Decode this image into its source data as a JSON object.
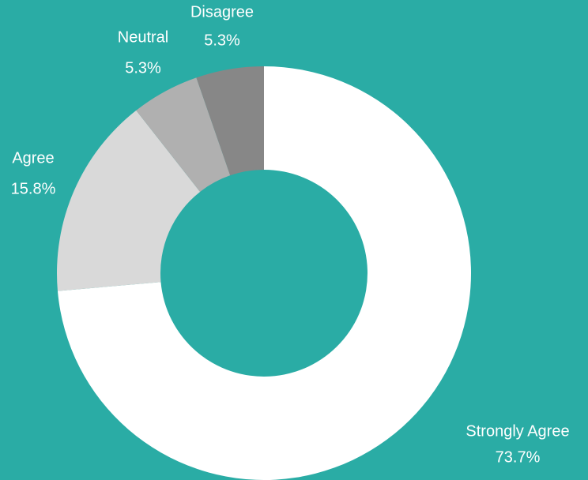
{
  "chart_data": {
    "type": "donut",
    "categories": [
      "Strongly Agree",
      "Agree",
      "Neutral",
      "Disagree"
    ],
    "values": [
      73.7,
      15.8,
      5.3,
      5.3
    ],
    "value_labels": [
      "73.7%",
      "15.8%",
      "5.3%",
      "5.3%"
    ],
    "colors": [
      "#ffffff",
      "#d9d9d9",
      "#b0b0b0",
      "#878787"
    ],
    "background": "#2aaca5"
  }
}
